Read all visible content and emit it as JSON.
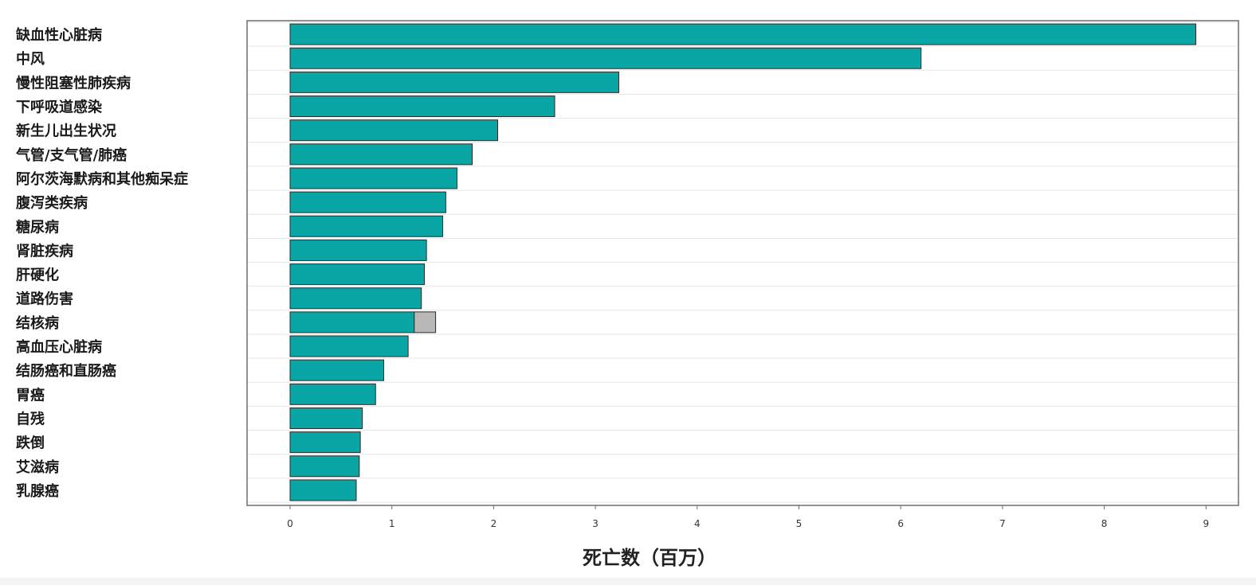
{
  "chart_data": {
    "type": "bar",
    "orientation": "horizontal",
    "categories": [
      "缺血性心脏病",
      "中风",
      "慢性阻塞性肺疾病",
      "下呼吸道感染",
      "新生儿出生状况",
      "气管/支气管/肺癌",
      "阿尔茨海默病和其他痴呆症",
      "腹泻类疾病",
      "糖尿病",
      "肾脏疾病",
      "肝硬化",
      "道路伤害",
      "结核病",
      "高血压心脏病",
      "结肠癌和直肠癌",
      "胃癌",
      "自残",
      "跌倒",
      "艾滋病",
      "乳腺癌"
    ],
    "series": [
      {
        "color": "#0aa6a6",
        "values": [
          8.9,
          6.2,
          3.23,
          2.6,
          2.04,
          1.79,
          1.64,
          1.53,
          1.5,
          1.34,
          1.32,
          1.29,
          1.22,
          1.16,
          0.92,
          0.84,
          0.71,
          0.69,
          0.68,
          0.65
        ]
      },
      {
        "color": "#b8b8b8",
        "values": [
          0,
          0,
          0,
          0,
          0,
          0,
          0,
          0,
          0,
          0,
          0,
          0,
          0.21,
          0,
          0,
          0,
          0,
          0,
          0,
          0
        ]
      }
    ],
    "stacked": true,
    "xlim": [
      0,
      9
    ],
    "xticks": [
      "0",
      "1",
      "2",
      "3",
      "4",
      "5",
      "6",
      "7",
      "8",
      "9"
    ],
    "xlabel": "死亡数（百万）",
    "ylabel": "",
    "title": "",
    "grid": "horizontal",
    "legend": "none"
  }
}
